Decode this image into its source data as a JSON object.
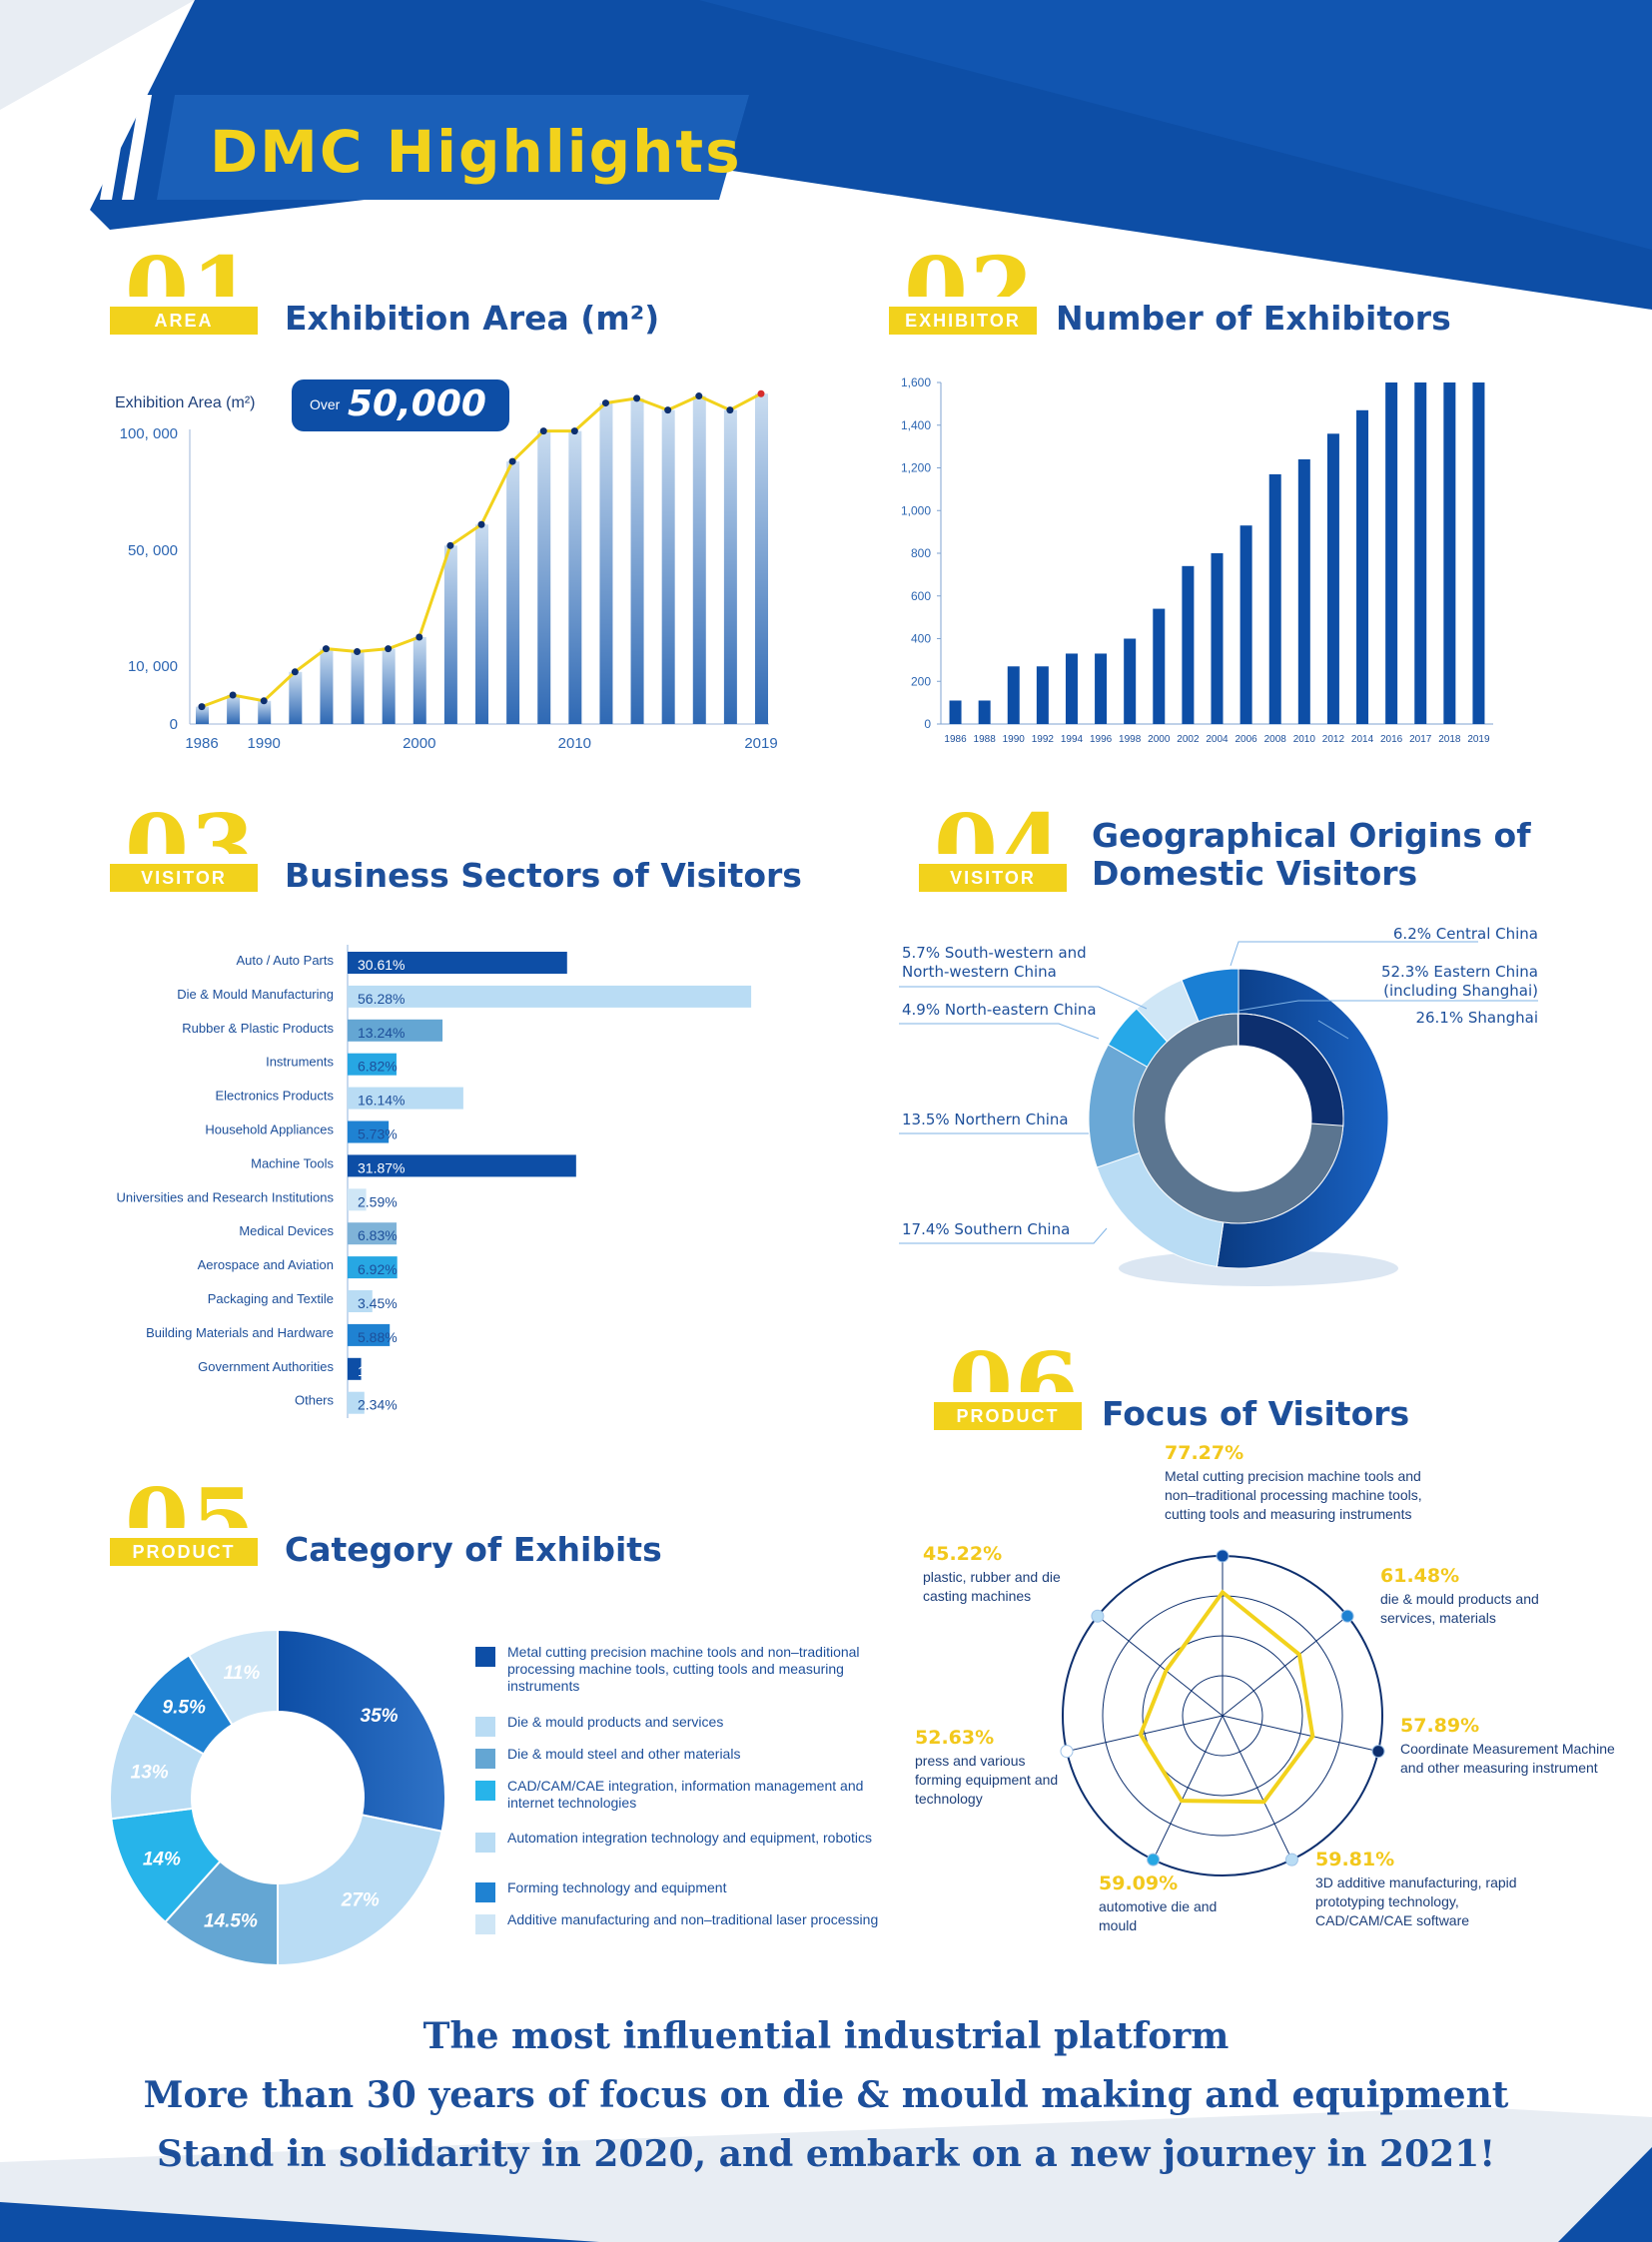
{
  "page_title": "DMC Highlights",
  "colors": {
    "primary_blue": "#0d4ea6",
    "yellow": "#f2d21c",
    "text_blue": "#1d4f9a"
  },
  "sections": {
    "s1": {
      "num": "01",
      "tag": "AREA",
      "title": "Exhibition Area (m²)"
    },
    "s2": {
      "num": "02",
      "tag": "EXHIBITOR",
      "title": "Number of Exhibitors"
    },
    "s3": {
      "num": "03",
      "tag": "VISITOR",
      "title": "Business Sectors of Visitors"
    },
    "s4": {
      "num": "04",
      "tag": "VISITOR",
      "title": "Geographical Origins of Domestic Visitors"
    },
    "s5": {
      "num": "05",
      "tag": "PRODUCT",
      "title": "Category of Exhibits"
    },
    "s6": {
      "num": "06",
      "tag": "PRODUCT",
      "title": "Focus of Visitors"
    }
  },
  "area_badge": {
    "prefix": "Over",
    "value": "50,000"
  },
  "footer": {
    "line1": "The most influential industrial platform",
    "line2": "More than 30 years of focus on die & mould making and equipment",
    "line3": "Stand in solidarity in 2020, and embark on a new journey in 2021!"
  },
  "chart_data": [
    {
      "type": "bar",
      "id": "exhibition_area",
      "ylabel": "Exhibition Area (m²)",
      "y_ticks": [
        "0",
        "10, 000",
        "50, 000",
        "100, 000"
      ],
      "x_ticks": [
        "1986",
        "1990",
        "2000",
        "2010",
        "2019"
      ],
      "categories": [
        "1986",
        "1988",
        "1990",
        "1992",
        "1994",
        "1996",
        "1998",
        "2000",
        "2002",
        "2004",
        "2006",
        "2008",
        "2010",
        "2012",
        "2014",
        "2016",
        "2017",
        "2018",
        "2019"
      ],
      "values": [
        3000,
        5000,
        4000,
        9000,
        16000,
        15000,
        16000,
        20000,
        52000,
        61000,
        88000,
        101000,
        101000,
        113000,
        115000,
        110000,
        116000,
        110000,
        117000
      ],
      "line_overlay": true
    },
    {
      "type": "bar",
      "id": "number_of_exhibitors",
      "ylim": [
        0,
        1600
      ],
      "y_ticks": [
        "0",
        "200",
        "400",
        "600",
        "800",
        "1,000",
        "1,200",
        "1,400",
        "1,600"
      ],
      "categories": [
        "1986",
        "1988",
        "1990",
        "1992",
        "1994",
        "1996",
        "1998",
        "2000",
        "2002",
        "2004",
        "2006",
        "2008",
        "2010",
        "2012",
        "2014",
        "2016",
        "2017",
        "2018",
        "2019"
      ],
      "values": [
        110,
        110,
        270,
        270,
        330,
        330,
        400,
        540,
        740,
        800,
        930,
        1170,
        1240,
        1360,
        1470,
        1600,
        1600,
        1600,
        1600
      ]
    },
    {
      "type": "bar",
      "id": "business_sectors",
      "orientation": "horizontal",
      "categories": [
        "Auto / Auto Parts",
        "Die & Mould Manufacturing",
        "Rubber & Plastic Products",
        "Instruments",
        "Electronics Products",
        "Household Appliances",
        "Machine Tools",
        "Universities and Research Institutions",
        "Medical Devices",
        "Aerospace and Aviation",
        "Packaging and Textile",
        "Building Materials and Hardware",
        "Government Authorities",
        "Others"
      ],
      "values": [
        30.61,
        56.28,
        13.24,
        6.82,
        16.14,
        5.73,
        31.87,
        2.59,
        6.83,
        6.92,
        3.45,
        5.88,
        1.89,
        2.34
      ],
      "labels": [
        "30.61%",
        "56.28%",
        "13.24%",
        "6.82%",
        "16.14%",
        "5.73%",
        "31.87%",
        "2.59%",
        "6.83%",
        "6.92%",
        "3.45%",
        "5.88%",
        "1.89%",
        "2.34%"
      ],
      "colors": [
        "#0d4ea6",
        "#b9dcf4",
        "#64a6d3",
        "#27a7e3",
        "#b9dcf4",
        "#1f82d2",
        "#0d4ea6",
        "#cfe6f6",
        "#7fb3d8",
        "#27a7e3",
        "#b9dcf4",
        "#1f82d2",
        "#0d4ea6",
        "#b9dcf4"
      ]
    },
    {
      "type": "pie",
      "id": "geographical_origins",
      "donut": true,
      "labels": [
        "52.3% Eastern China (including Shanghai)",
        "17.4% Southern China",
        "13.5% Northern China",
        "4.9% North-eastern China",
        "5.7% South-western and North-western China",
        "6.2% Central China"
      ],
      "values": [
        52.3,
        17.4,
        13.5,
        4.9,
        5.7,
        6.2
      ],
      "colors": [
        "#0d4ea6",
        "#b9dcf4",
        "#6aa8d6",
        "#26a8e8",
        "#cfe6f6",
        "#1a7fd4"
      ],
      "inner_label": "26.1% Shanghai",
      "inner_value": 26.1
    },
    {
      "type": "pie",
      "id": "category_of_exhibits",
      "donut": true,
      "labels": [
        "35%",
        "27%",
        "14.5%",
        "14%",
        "13%",
        "9.5%",
        "11%"
      ],
      "values": [
        35,
        27,
        14.5,
        14,
        13,
        9.5,
        11
      ],
      "colors": [
        "#0d4ea6",
        "#b9dcf4",
        "#64a6d3",
        "#27b4ea",
        "#b9dcf4",
        "#1f82d2",
        "#cfe6f6"
      ],
      "legend": [
        "Metal cutting precision machine tools and non–traditional processing machine tools, cutting tools and measuring instruments",
        "Die & mould products and services",
        "Die & mould steel and other materials",
        "CAD/CAM/CAE integration, information management and internet technologies",
        "Automation integration technology and equipment, robotics",
        "Forming technology and equipment",
        "Additive manufacturing and non–traditional laser processing"
      ]
    },
    {
      "type": "radar",
      "id": "focus_of_visitors",
      "axes": [
        {
          "value": 77.27,
          "pct": "77.27%",
          "label": "Metal cutting precision machine tools and non–traditional processing machine tools, cutting tools and measuring instruments"
        },
        {
          "value": 61.48,
          "pct": "61.48%",
          "label": "die & mould products and services, materials"
        },
        {
          "value": 57.89,
          "pct": "57.89%",
          "label": "Coordinate Measurement Machine and other measuring instrument"
        },
        {
          "value": 59.81,
          "pct": "59.81%",
          "label": "3D additive manufacturing, rapid prototyping technology, CAD/CAM/CAE software"
        },
        {
          "value": 59.09,
          "pct": "59.09%",
          "label": "automotive die and mould"
        },
        {
          "value": 52.63,
          "pct": "52.63%",
          "label": "press and various forming equipment and technology"
        },
        {
          "value": 45.22,
          "pct": "45.22%",
          "label": "plastic, rubber and die casting machines"
        }
      ],
      "dot_colors": [
        "#0d4ea6",
        "#1f82d2",
        "#0d2f6e",
        "#b9dcf4",
        "#27a7e3",
        "#ffffff",
        "#b9dcf4"
      ]
    }
  ]
}
